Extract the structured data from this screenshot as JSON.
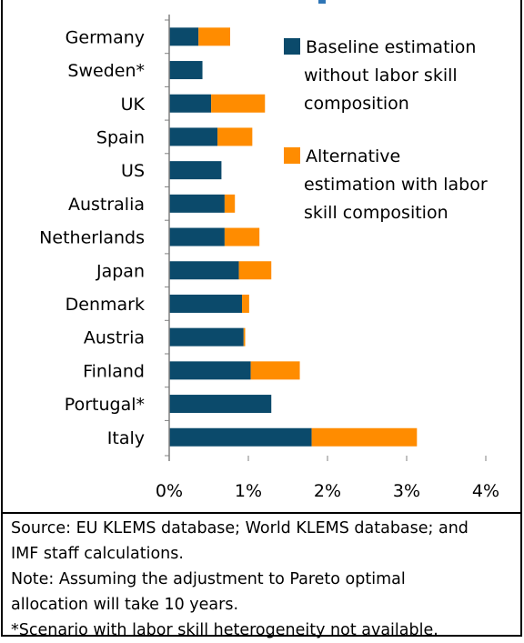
{
  "chart_data": {
    "type": "bar",
    "orientation": "horizontal",
    "stacked": true,
    "categories": [
      "Germany",
      "Sweden*",
      "UK",
      "Spain",
      "US",
      "Australia",
      "Netherlands",
      "Japan",
      "Denmark",
      "Austria",
      "Finland",
      "Portugal*",
      "Italy"
    ],
    "series": [
      {
        "name": "Baseline estimation without labor skill composition",
        "color": "#0b4a6b",
        "values": [
          0.37,
          0.42,
          0.53,
          0.61,
          0.66,
          0.7,
          0.7,
          0.88,
          0.92,
          0.94,
          1.03,
          1.29,
          1.8
        ]
      },
      {
        "name": "Alternative estimation with labor skill composition",
        "color": "#ff8c00",
        "values": [
          0.4,
          0.0,
          0.68,
          0.44,
          0.0,
          0.13,
          0.44,
          0.41,
          0.09,
          0.02,
          0.62,
          0.0,
          1.33
        ]
      }
    ],
    "xlim": [
      0,
      4
    ],
    "xticks": [
      "0%",
      "1%",
      "2%",
      "3%",
      "4%"
    ],
    "legend_lines": [
      [
        "Baseline estimation",
        "without labor skill",
        "composition"
      ],
      [
        "Alternative",
        "estimation with labor",
        "skill composition"
      ]
    ],
    "legend_position": "right"
  },
  "notes": {
    "source_1": "Source: EU KLEMS database; World KLEMS database; and",
    "source_2": "IMF staff calculations.",
    "note_1": "Note: Assuming the adjustment to Pareto optimal",
    "note_2": "allocation will take 10 years.",
    "scenario": "*Scenario with labor skill heterogeneity not available."
  }
}
